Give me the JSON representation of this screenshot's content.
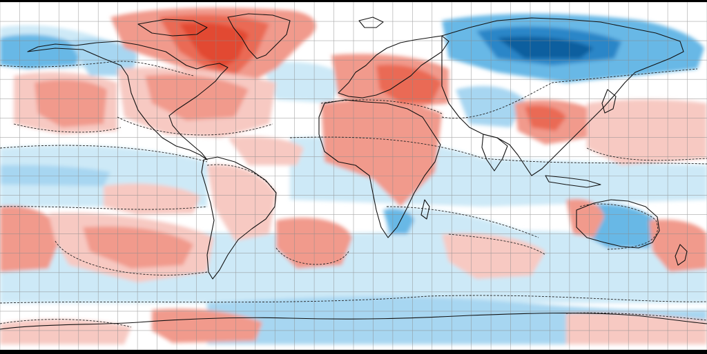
{
  "map": {
    "projection": "equirectangular",
    "graticule_spacing_degrees": 10,
    "colors": {
      "background": "#ffffff",
      "border_band": "#000000",
      "warm_light": "#f7c9c2",
      "warm_mid": "#f19a8c",
      "warm_strong": "#ea6a55",
      "warm_extreme": "#e24a32",
      "cool_light": "#cde9f7",
      "cool_mid": "#a7d6f1",
      "cool_strong": "#68b8e6",
      "cool_extreme": "#2a86c8",
      "cool_deep": "#0f5f9f",
      "coastline": "#111111",
      "contour": "#222222",
      "graticule": "#8a8a8a"
    }
  }
}
